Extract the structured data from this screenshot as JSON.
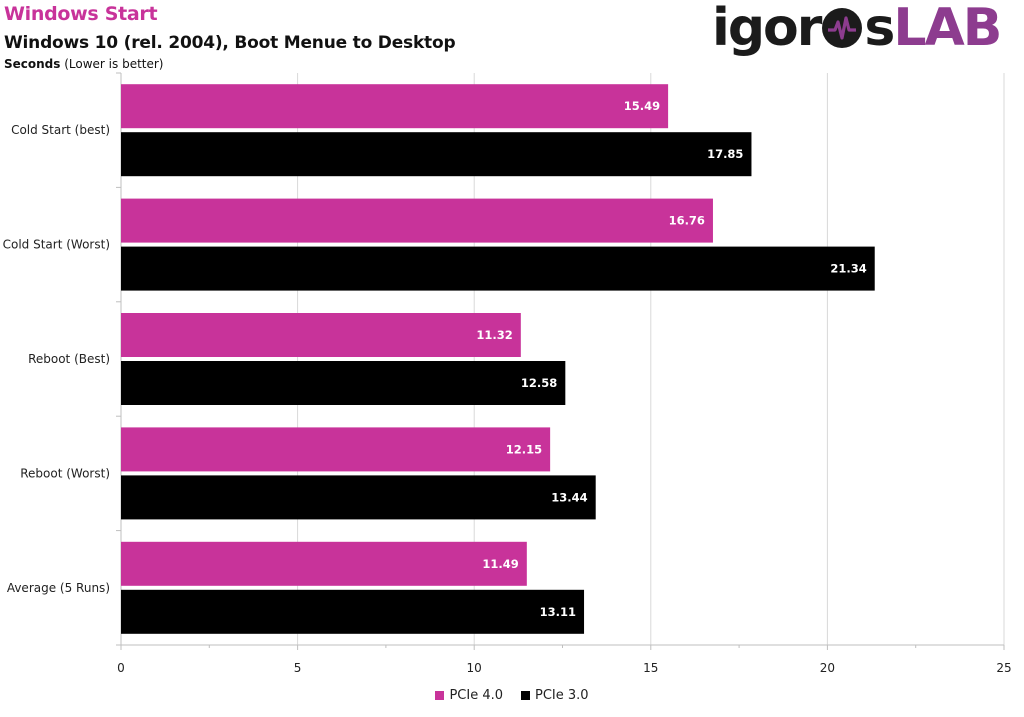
{
  "header": {
    "title": "Windows Start",
    "subtitle": "Windows 10 (rel. 2004), Boot Menue to Desktop",
    "unit_bold": "Seconds",
    "unit_note": " (Lower is better)",
    "logo_left": "igor",
    "logo_middle": "s",
    "logo_right": "LAB"
  },
  "colors": {
    "pcie4": "#c8339a",
    "pcie3": "#000000",
    "grid": "#d9d9d9",
    "logo_purple": "#8d3c8f"
  },
  "chart_data": {
    "type": "bar",
    "orientation": "horizontal",
    "categories": [
      "Cold Start (best)",
      "Cold Start (Worst)",
      "Reboot (Best)",
      "Reboot (Worst)",
      "Average (5 Runs)"
    ],
    "series": [
      {
        "name": "PCIe 4.0",
        "color": "#c8339a",
        "values": [
          15.49,
          16.76,
          11.32,
          12.15,
          11.49
        ]
      },
      {
        "name": "PCIe 3.0",
        "color": "#000000",
        "values": [
          17.85,
          21.34,
          12.58,
          13.44,
          13.11
        ]
      }
    ],
    "xlim": [
      0,
      25
    ],
    "xticks": [
      0,
      5,
      10,
      15,
      20,
      25
    ],
    "xlabel": "",
    "ylabel": "Seconds (Lower is better)",
    "grid": true,
    "legend": "bottom"
  }
}
